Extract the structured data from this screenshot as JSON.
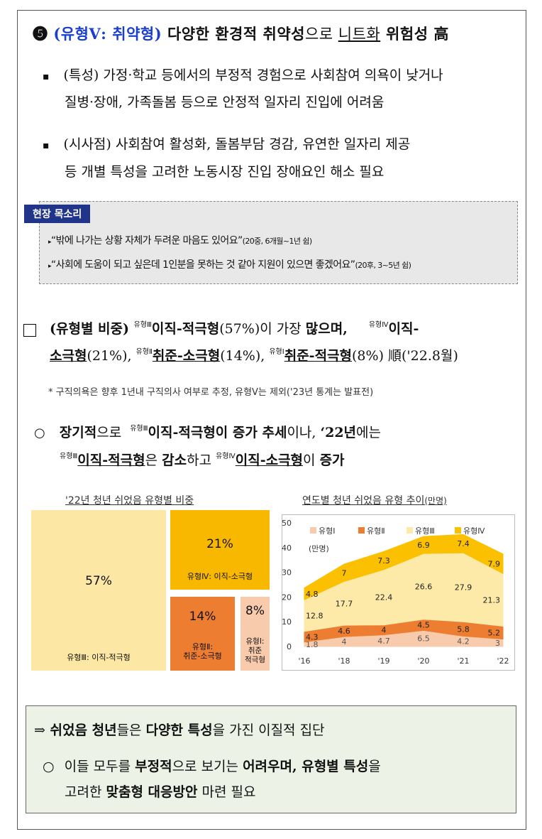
{
  "section5": {
    "number": "❺",
    "type_label": "(유형Ⅴ: 취약형)",
    "title_a": " 다양한 환경적 취약성",
    "title_b": "으로 ",
    "title_c": "니트화",
    "title_d": " 위험성 高"
  },
  "bullets": [
    {
      "marker": "▪",
      "line1": "(특성) 가정·학교 등에서의 부정적 경험으로 사회참여 의욕이 낮거나",
      "line2": "질병·장애, 가족돌봄 등으로 안정적 일자리 진입에 어려움"
    },
    {
      "marker": "▪",
      "line1": "(시사점) 사회참여 활성화, 돌봄부담 경감, 유연한 일자리 제공",
      "line2": "등 개별 특성을 고려한 노동시장 진입 장애요인 해소 필요"
    }
  ],
  "voice": {
    "title": "현장 목소리",
    "quotes": [
      {
        "text": "“밖에 나가는 상황 자체가 두려운 마음도 있어요”",
        "meta": "(20중, 6개월~1년 쉼)"
      },
      {
        "text": "“사회에 도움이 되고 싶은데 1인분을 못하는 것 같아 지원이 있으면 좋겠어요”",
        "meta": "(20후, 3~5년 쉼)"
      }
    ]
  },
  "ratio": {
    "a": "(유형별 비중) ",
    "tag3": "유형Ⅲ",
    "b": "이직-적극형",
    "c": "(57%)이 가장 ",
    "d": "많으며,",
    "tag4": "유형Ⅳ",
    "e": "이직-",
    "f": "소극형",
    "g": "(21%), ",
    "tag2": "유형Ⅱ",
    "h": "취준-소극형",
    "i": "(14%), ",
    "tag1": "유형Ⅰ",
    "j": "취준-적극형",
    "k": "(8%) 順('22.8월)"
  },
  "footnote": "* 구직의욕은 향후 1년내 구직의사 여부로 추정, 유형Ⅴ는 제외('23년 통계는 발표전)",
  "trend": {
    "marker": "○",
    "a": "장기적",
    "b": "으로 ",
    "tag3": "유형Ⅲ",
    "c": "이직-적극형이 증가 추세",
    "d": "이나, ",
    "e": "‘22년",
    "f": "에는",
    "tag3b": "유형Ⅲ",
    "g": "이직-적극형",
    "h": "은 ",
    "i": "감소",
    "j": "하고 ",
    "tag4": "유형Ⅳ",
    "k": "이직-소극형",
    "l": "이 ",
    "m": "증가"
  },
  "treemap": {
    "title": "'22년 청년 쉬었음 유형별 비중",
    "tiles": [
      {
        "pct": "57%",
        "label": "유형Ⅲ: 이직-적극형",
        "color": "#fde7a4"
      },
      {
        "pct": "21%",
        "label": "유형Ⅳ: 이직-소극형",
        "color": "#f9b800"
      },
      {
        "pct": "14%",
        "label": "유형Ⅱ:\n취준-소극형",
        "color": "#ed7d31"
      },
      {
        "pct": "8%",
        "label": "유형Ⅰ:\n취준\n적극형",
        "color": "#f8cbad"
      }
    ]
  },
  "area_chart": {
    "title": "연도별 청년 쉬었음 유형 추이",
    "title_unit": "(만명)",
    "unit": "(만명)"
  },
  "chart_data": {
    "type": "area",
    "stacked": true,
    "x": [
      "'16",
      "'18",
      "'19",
      "'20",
      "'21",
      "'22"
    ],
    "ylim": [
      0,
      50
    ],
    "yticks": [
      0,
      10,
      20,
      30,
      40,
      50
    ],
    "legend_position": "top",
    "series": [
      {
        "name": "유형Ⅰ",
        "values": [
          1.8,
          4,
          4.7,
          6.5,
          4.2,
          3
        ],
        "color": "#f8cbad"
      },
      {
        "name": "유형Ⅱ",
        "values": [
          4.3,
          4.6,
          4,
          4.5,
          5.8,
          5.2
        ],
        "color": "#ed7d31"
      },
      {
        "name": "유형Ⅲ",
        "values": [
          12.8,
          17.7,
          22.4,
          26.6,
          27.9,
          21.3
        ],
        "color": "#fde9a8"
      },
      {
        "name": "유형Ⅳ",
        "values": [
          4.8,
          7,
          7.3,
          6.9,
          7.4,
          7.9
        ],
        "color": "#fbc000"
      }
    ]
  },
  "conclusion": {
    "arrow": "⇒",
    "a": " 쉬었음 청년",
    "b": "들은 ",
    "c": "다양한 특성",
    "d": "을 가진 이질적 집단",
    "marker": "○",
    "e": " 이들 모두를 ",
    "f": "부정적",
    "g": "으로 보기는 ",
    "h": "어려우며, 유형별 특성",
    "i": "을",
    "j": "고려한 ",
    "k": "맞춤형 대응방안",
    "l": " 마련 필요"
  }
}
